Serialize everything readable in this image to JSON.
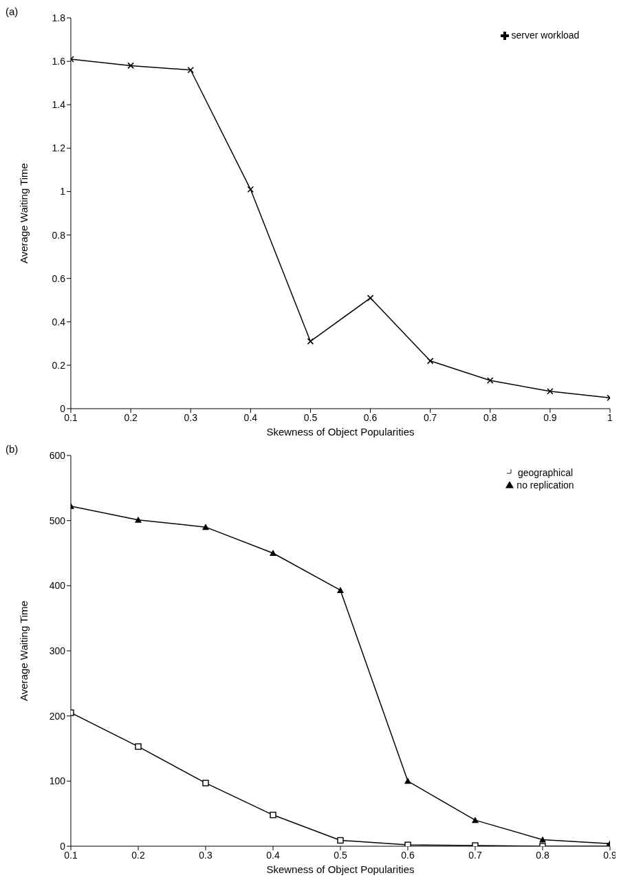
{
  "chart_data": [
    {
      "type": "line",
      "title": "(a)",
      "xlabel": "Skewness of Object Popularities",
      "ylabel": "Average Waiting Time",
      "x": [
        0.1,
        0.2,
        0.3,
        0.4,
        0.5,
        0.6,
        0.7,
        0.8,
        0.9,
        1
      ],
      "series": [
        {
          "name": "server workload",
          "color": "#000000",
          "marker": "cross",
          "values": [
            1.61,
            1.58,
            1.56,
            1.01,
            0.31,
            0.51,
            0.22,
            0.13,
            0.08,
            0.05
          ]
        }
      ],
      "xlim": [
        0.1,
        1
      ],
      "xticks": [
        0.1,
        0.2,
        0.3,
        0.4,
        0.5,
        0.6,
        0.7,
        0.8,
        0.9,
        1
      ],
      "ylim": [
        0,
        1.8
      ],
      "yticks": [
        0,
        0.2,
        0.4,
        0.6,
        0.8,
        1,
        1.2,
        1.4,
        1.6,
        1.8
      ],
      "grid": false,
      "legend": "top right",
      "line_style": "solid"
    },
    {
      "type": "line",
      "title": "(b)",
      "xlabel": "Skewness of Object Popularities",
      "ylabel": "Average Waiting Time",
      "x": [
        0.1,
        0.2,
        0.3,
        0.4,
        0.5,
        0.6,
        0.7,
        0.8,
        0.9
      ],
      "series": [
        {
          "name": "geographical",
          "color": "#000000",
          "marker": "square",
          "values": [
            205,
            153,
            97,
            48,
            9,
            2,
            1,
            0,
            0
          ]
        },
        {
          "name": "no replication",
          "color": "#000000",
          "marker": "triangle",
          "values": [
            522,
            501,
            490,
            450,
            393,
            100,
            40,
            10,
            4
          ]
        }
      ],
      "xlim": [
        0.1,
        0.9
      ],
      "xticks": [
        0.1,
        0.2,
        0.3,
        0.4,
        0.5,
        0.6,
        0.7,
        0.8,
        0.9
      ],
      "ylim": [
        0,
        600
      ],
      "yticks": [
        0,
        100,
        200,
        300,
        400,
        500,
        600
      ],
      "grid": false,
      "legend": "top right",
      "line_style": "solid"
    }
  ]
}
